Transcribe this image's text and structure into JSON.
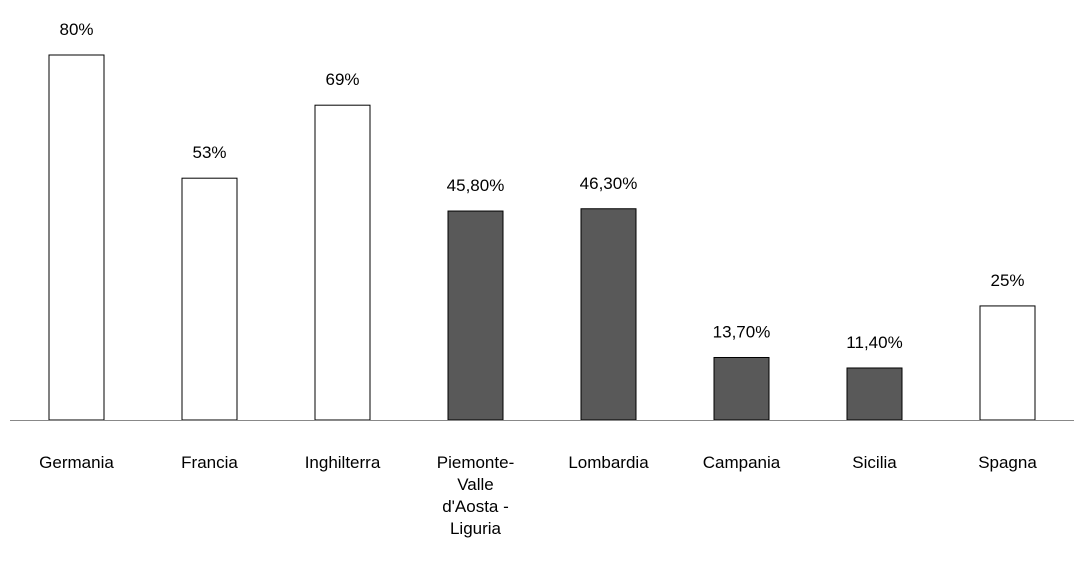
{
  "chart_data": {
    "type": "bar",
    "categories": [
      "Germania",
      "Francia",
      "Inghilterra",
      "Piemonte-Valle d'Aosta - Liguria",
      "Lombardia",
      "Campania",
      "Sicilia",
      "Spagna"
    ],
    "values": [
      80,
      53,
      69,
      45.8,
      46.3,
      13.7,
      11.4,
      25
    ],
    "value_labels": [
      "80%",
      "53%",
      "69%",
      "45,80%",
      "46,30%",
      "13,70%",
      "11,40%",
      "25%"
    ],
    "colors": [
      "#ffffff",
      "#ffffff",
      "#ffffff",
      "#595959",
      "#595959",
      "#595959",
      "#595959",
      "#ffffff"
    ]
  }
}
